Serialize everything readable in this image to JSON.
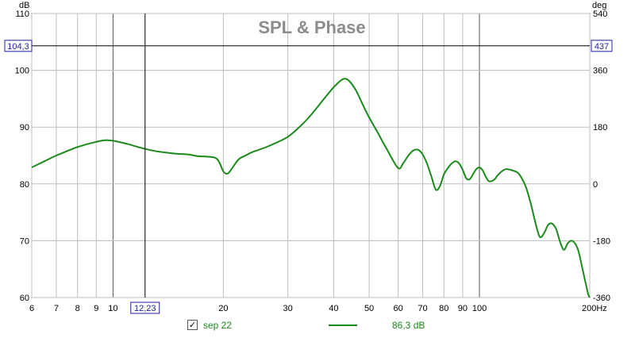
{
  "chart_data": {
    "type": "line",
    "title": "SPL & Phase",
    "x_unit": "Hz",
    "y_left_unit": "dB",
    "y_right_unit": "deg",
    "x_scale": "log",
    "xlim": [
      6,
      200
    ],
    "ylim_left": [
      60,
      110
    ],
    "ylim_right": [
      -360,
      540
    ],
    "x_ticks": [
      {
        "value": 6,
        "label": "6"
      },
      {
        "value": 7,
        "label": "7"
      },
      {
        "value": 8,
        "label": "8"
      },
      {
        "value": 9,
        "label": "9"
      },
      {
        "value": 10,
        "label": "10"
      },
      {
        "value": 20,
        "label": "20"
      },
      {
        "value": 30,
        "label": "30"
      },
      {
        "value": 40,
        "label": "40"
      },
      {
        "value": 50,
        "label": "50"
      },
      {
        "value": 60,
        "label": "60"
      },
      {
        "value": 70,
        "label": "70"
      },
      {
        "value": 80,
        "label": "80"
      },
      {
        "value": 90,
        "label": "90"
      },
      {
        "value": 100,
        "label": "100"
      },
      {
        "value": 200,
        "label": "200Hz"
      }
    ],
    "y_left_ticks": [
      {
        "value": 60,
        "label": "60"
      },
      {
        "value": 70,
        "label": "70"
      },
      {
        "value": 80,
        "label": "80"
      },
      {
        "value": 90,
        "label": "90"
      },
      {
        "value": 100,
        "label": "100"
      },
      {
        "value": 110,
        "label": "110"
      }
    ],
    "y_right_ticks": [
      {
        "value": -360,
        "label": "-360"
      },
      {
        "value": -180,
        "label": "-180"
      },
      {
        "value": 0,
        "label": "0"
      },
      {
        "value": 180,
        "label": "180"
      },
      {
        "value": 360,
        "label": "360"
      },
      {
        "value": 540,
        "label": "540"
      }
    ],
    "grid": true,
    "cursor": {
      "x_value": 12.23,
      "x_label": "12,23",
      "y_left_value": 104.3,
      "y_left_label": "104,3",
      "y_right_label": "437"
    },
    "legend_position": "bottom",
    "series": [
      {
        "name": "sep 22",
        "color": "#1a8a1a",
        "x": [
          6,
          6.5,
          7,
          7.5,
          8,
          8.5,
          9,
          9.5,
          10,
          10.5,
          11,
          12,
          13,
          14,
          15,
          16,
          17,
          18,
          19,
          19.5,
          20,
          20.5,
          21,
          22,
          23,
          24,
          26,
          28,
          30,
          32,
          34,
          36,
          38,
          40,
          42,
          43,
          44,
          46,
          48,
          50,
          53,
          56,
          60,
          62,
          64,
          66,
          68,
          70,
          72,
          74,
          76,
          78,
          80,
          82,
          84,
          86,
          88,
          90,
          92,
          94,
          96,
          98,
          100,
          102,
          104,
          106,
          108,
          110,
          112,
          115,
          118,
          121,
          124,
          127,
          130,
          134,
          138,
          142,
          146,
          150,
          154,
          158,
          162,
          166,
          170,
          174,
          178,
          182,
          186,
          190,
          194,
          198,
          200
        ],
        "y": [
          82.9,
          84.0,
          85.0,
          85.8,
          86.5,
          87.0,
          87.4,
          87.7,
          87.6,
          87.3,
          87.0,
          86.3,
          85.8,
          85.5,
          85.3,
          85.2,
          84.9,
          84.8,
          84.6,
          83.8,
          82.2,
          81.8,
          82.5,
          84.3,
          85.0,
          85.6,
          86.4,
          87.3,
          88.3,
          89.8,
          91.5,
          93.4,
          95.3,
          97.0,
          98.3,
          98.5,
          98.2,
          96.5,
          94.0,
          91.7,
          88.8,
          86.0,
          82.8,
          83.7,
          85.0,
          85.9,
          86.0,
          85.2,
          83.5,
          81.2,
          79.0,
          79.6,
          81.7,
          82.8,
          83.6,
          84.0,
          83.6,
          82.5,
          81.0,
          80.8,
          81.7,
          82.6,
          82.9,
          82.4,
          81.3,
          80.5,
          80.5,
          80.8,
          81.5,
          82.2,
          82.6,
          82.5,
          82.3,
          82.0,
          81.2,
          79.4,
          76.6,
          73.3,
          70.7,
          71.3,
          72.8,
          73.0,
          72.0,
          69.8,
          68.4,
          69.5,
          70.0,
          69.6,
          68.3,
          65.8,
          63.1,
          60.6,
          60.0
        ]
      }
    ],
    "legend_value_label": "86,3 dB"
  }
}
